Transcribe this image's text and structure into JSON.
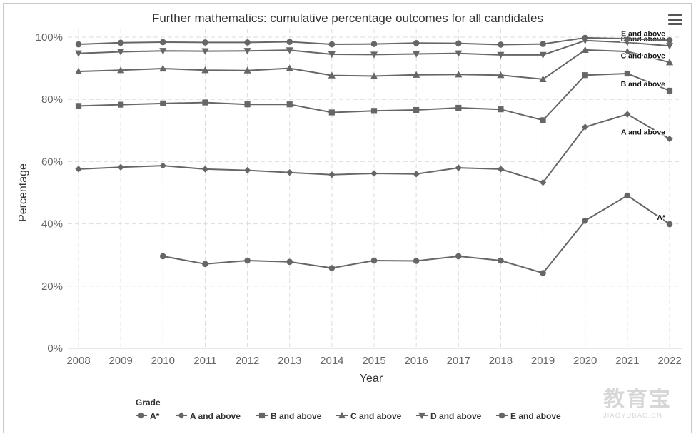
{
  "chart_data": {
    "type": "line",
    "title": "Further mathematics: cumulative percentage outcomes for all candidates",
    "xlabel": "Year",
    "ylabel": "Percentage",
    "x": [
      2008,
      2009,
      2010,
      2011,
      2012,
      2013,
      2014,
      2015,
      2016,
      2017,
      2018,
      2019,
      2020,
      2021,
      2022
    ],
    "y_ticks": [
      "0%",
      "20%",
      "40%",
      "60%",
      "80%",
      "100%"
    ],
    "ylim": [
      0,
      100
    ],
    "grid": true,
    "legend_title": "Grade",
    "legend_position": "bottom-left",
    "line_color": "#666666",
    "series": [
      {
        "name": "A*",
        "marker": "circle",
        "end_label": "A*",
        "values": [
          null,
          null,
          29.6,
          27.1,
          28.2,
          27.8,
          25.8,
          28.2,
          28.1,
          29.6,
          28.2,
          24.2,
          41.0,
          49.1,
          39.9
        ]
      },
      {
        "name": "A and above",
        "marker": "diamond",
        "end_label": "A and above",
        "values": [
          57.6,
          58.2,
          58.7,
          57.6,
          57.2,
          56.5,
          55.8,
          56.2,
          56.0,
          58.0,
          57.6,
          53.3,
          71.1,
          75.2,
          67.3
        ]
      },
      {
        "name": "B and above",
        "marker": "square",
        "end_label": "B and above",
        "values": [
          77.9,
          78.3,
          78.7,
          79.0,
          78.4,
          78.4,
          75.8,
          76.3,
          76.6,
          77.3,
          76.8,
          73.3,
          87.8,
          88.3,
          82.8
        ]
      },
      {
        "name": "C and above",
        "marker": "triangle",
        "end_label": "C and above",
        "values": [
          89.0,
          89.4,
          89.9,
          89.4,
          89.3,
          90.0,
          87.7,
          87.5,
          87.9,
          88.0,
          87.8,
          86.5,
          95.9,
          95.4,
          91.9
        ]
      },
      {
        "name": "D and above",
        "marker": "triangle-down",
        "end_label": "D and above",
        "values": [
          94.8,
          95.3,
          95.6,
          95.5,
          95.6,
          95.8,
          94.5,
          94.4,
          94.6,
          94.8,
          94.3,
          94.3,
          98.9,
          98.3,
          97.2
        ]
      },
      {
        "name": "E and above",
        "marker": "circle",
        "end_label": "E and above",
        "values": [
          97.7,
          98.2,
          98.4,
          98.3,
          98.3,
          98.5,
          97.7,
          97.8,
          98.1,
          98.0,
          97.6,
          97.8,
          99.8,
          99.5,
          99.0
        ]
      }
    ]
  },
  "watermark": {
    "cn": "教育宝",
    "en": "JIAOYUBAO.CN"
  },
  "menu_icon": "hamburger-menu-icon"
}
